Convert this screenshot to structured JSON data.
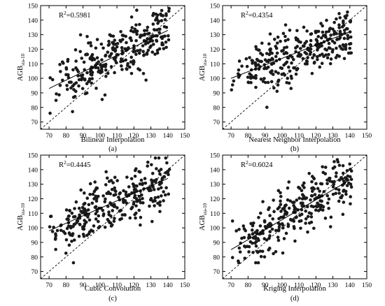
{
  "figure": {
    "y_axis_label": {
      "main": "AGB",
      "sub": "sta-10"
    },
    "r2_prefix": "R",
    "r2_sup": "2"
  },
  "chart_data": [
    {
      "type": "scatter",
      "panel_label": "(a)",
      "xlabel": "Bilinear Interpolation",
      "ylabel": "AGBsta-10",
      "r2_value": "=0.5981",
      "xlim": [
        65,
        150
      ],
      "ylim": [
        65,
        150
      ],
      "xticks": [
        70,
        80,
        90,
        100,
        110,
        120,
        130,
        140,
        150
      ],
      "yticks": [
        70,
        80,
        90,
        100,
        110,
        120,
        130,
        140,
        150
      ],
      "identity_line": {
        "style": "dashed",
        "from": [
          65,
          65
        ],
        "to": [
          150,
          150
        ]
      },
      "fit_line": {
        "style": "solid",
        "from": [
          70,
          93
        ],
        "to": [
          140,
          133
        ]
      },
      "points_per_panel": 300
    },
    {
      "type": "scatter",
      "panel_label": "(b)",
      "xlabel": "Nearest Neighbor Interpolation",
      "ylabel": "AGBsta-10",
      "r2_value": "=0.4354",
      "xlim": [
        65,
        150
      ],
      "ylim": [
        65,
        150
      ],
      "xticks": [
        70,
        80,
        90,
        100,
        110,
        120,
        130,
        140,
        150
      ],
      "yticks": [
        70,
        80,
        90,
        100,
        110,
        120,
        130,
        140,
        150
      ],
      "identity_line": {
        "style": "dashed",
        "from": [
          65,
          65
        ],
        "to": [
          150,
          150
        ]
      },
      "fit_line": {
        "style": "solid",
        "from": [
          70,
          100
        ],
        "to": [
          140,
          132
        ]
      },
      "points_per_panel": 300
    },
    {
      "type": "scatter",
      "panel_label": "(c)",
      "xlabel": "Cubic Convolution",
      "ylabel": "AGBsta-10",
      "r2_value": "=0.4445",
      "xlim": [
        65,
        150
      ],
      "ylim": [
        65,
        150
      ],
      "xticks": [
        70,
        80,
        90,
        100,
        110,
        120,
        130,
        140,
        150
      ],
      "yticks": [
        70,
        80,
        90,
        100,
        110,
        120,
        130,
        140,
        150
      ],
      "identity_line": {
        "style": "dashed",
        "from": [
          65,
          65
        ],
        "to": [
          150,
          150
        ]
      },
      "fit_line": {
        "style": "solid",
        "from": [
          70,
          98
        ],
        "to": [
          140,
          134
        ]
      },
      "points_per_panel": 300
    },
    {
      "type": "scatter",
      "panel_label": "(d)",
      "xlabel": "Kriging Interpolation",
      "ylabel": "AGBsta-10",
      "r2_value": "=0.6024",
      "xlim": [
        65,
        150
      ],
      "ylim": [
        65,
        150
      ],
      "xticks": [
        70,
        80,
        90,
        100,
        110,
        120,
        130,
        140,
        150
      ],
      "yticks": [
        70,
        80,
        90,
        100,
        110,
        120,
        130,
        140,
        150
      ],
      "identity_line": {
        "style": "dashed",
        "from": [
          65,
          65
        ],
        "to": [
          150,
          150
        ]
      },
      "fit_line": {
        "style": "solid",
        "from": [
          70,
          85
        ],
        "to": [
          140,
          133
        ]
      },
      "points_per_panel": 300
    }
  ]
}
